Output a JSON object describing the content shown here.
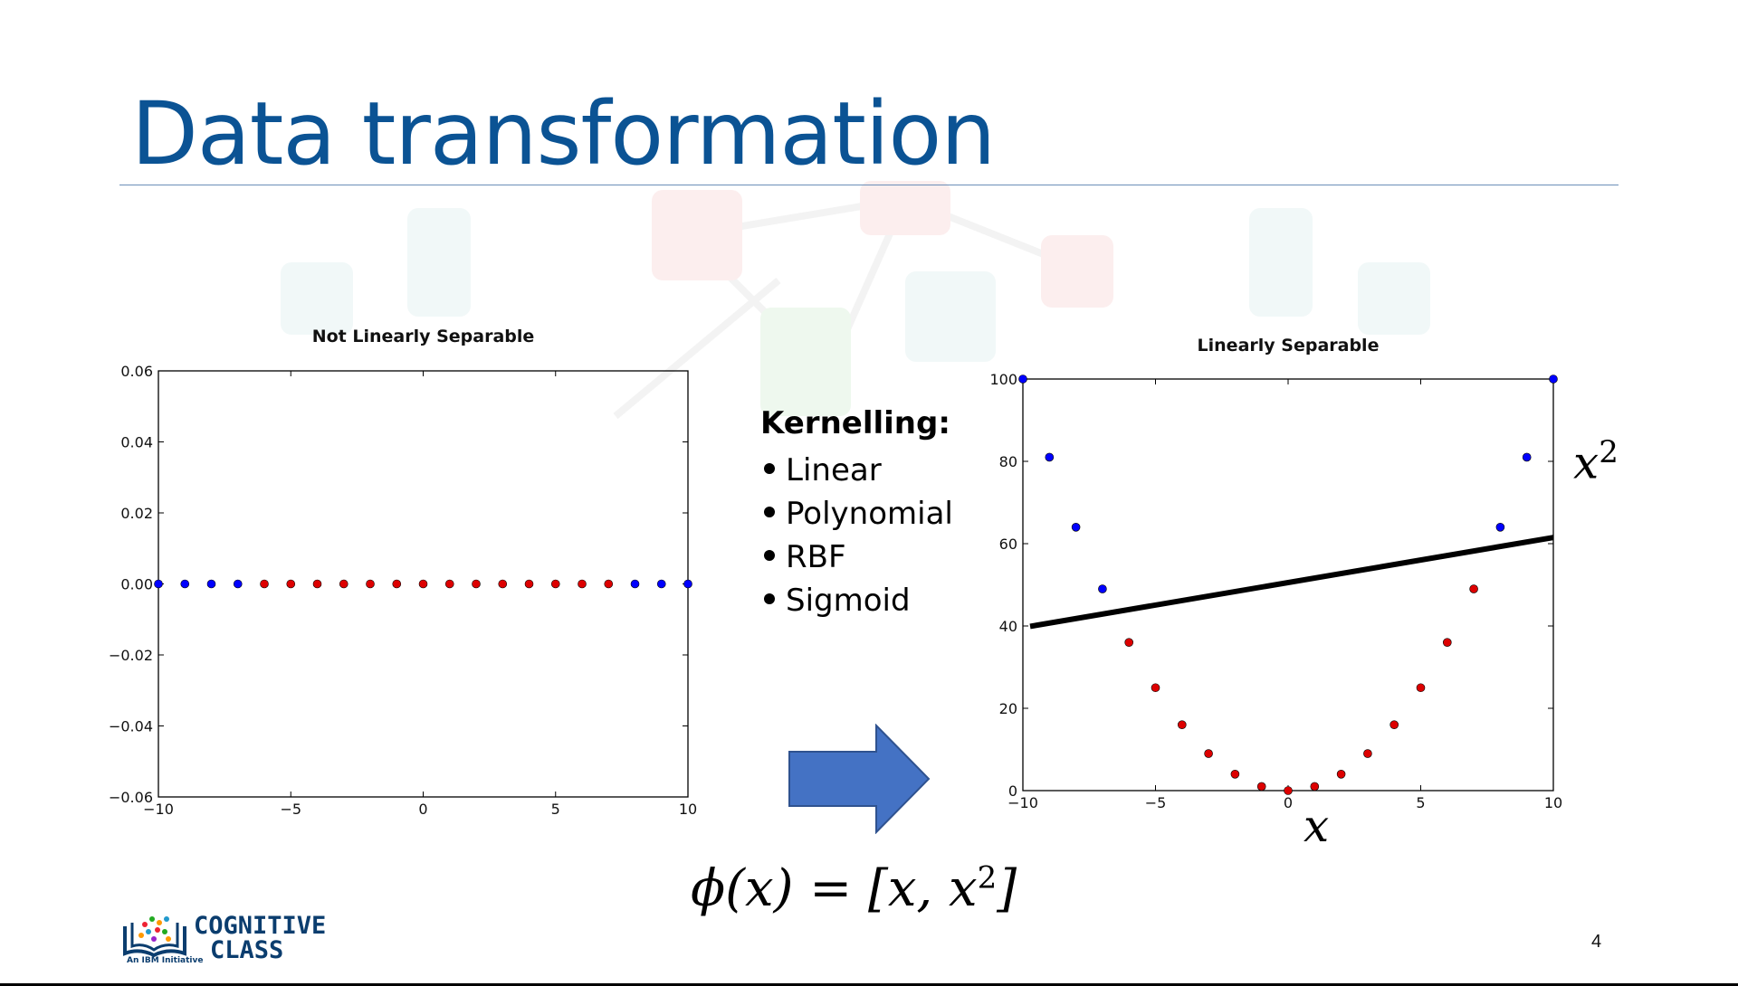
{
  "slide": {
    "title": "Data transformation",
    "number": "4",
    "kernel_heading": "Kernelling:",
    "kernels": [
      "Linear",
      "Polynomial",
      "RBF",
      "Sigmoid"
    ],
    "formula": {
      "lhs": "ϕ(x) = [x, x",
      "sup": "2",
      "rhs": "]"
    },
    "x_axis_math": "x",
    "y_axis_math": "x",
    "y_axis_sup": "2",
    "logo": {
      "line1": "COGNITIVE",
      "line2": "CLASS",
      "sub": "An IBM Initiative"
    },
    "colors": {
      "title": "#0b5394",
      "arrow": "#4472c4",
      "class_a": "#0000ff",
      "class_b": "#dd0000"
    }
  },
  "chart_data": [
    {
      "type": "scatter",
      "title": "Not Linearly Separable",
      "xlabel": "",
      "ylabel": "",
      "xlim": [
        -10,
        10
      ],
      "ylim": [
        -0.06,
        0.06
      ],
      "xticks": [
        "−10",
        "−5",
        "0",
        "5",
        "10"
      ],
      "yticks": [
        "−0.06",
        "−0.04",
        "−0.02",
        "0.00",
        "0.02",
        "0.04",
        "0.06"
      ],
      "series": [
        {
          "color": "#0000ff",
          "x": [
            -10,
            -9,
            -8,
            -7,
            8,
            9,
            10
          ],
          "y": [
            0,
            0,
            0,
            0,
            0,
            0,
            0
          ]
        },
        {
          "color": "#dd0000",
          "x": [
            -6,
            -5,
            -4,
            -3,
            -2,
            -1,
            0,
            1,
            2,
            3,
            4,
            5,
            6,
            7
          ],
          "y": [
            0,
            0,
            0,
            0,
            0,
            0,
            0,
            0,
            0,
            0,
            0,
            0,
            0,
            0
          ]
        }
      ]
    },
    {
      "type": "scatter",
      "title": "Linearly Separable",
      "xlabel": "",
      "ylabel": "",
      "xlim": [
        -10,
        10
      ],
      "ylim": [
        0,
        100
      ],
      "xticks": [
        "−10",
        "−5",
        "0",
        "5",
        "10"
      ],
      "yticks": [
        "0",
        "20",
        "40",
        "60",
        "80",
        "100"
      ],
      "series": [
        {
          "color": "#0000ff",
          "x": [
            -10,
            -9,
            -8,
            -7,
            8,
            9,
            10
          ],
          "y": [
            100,
            81,
            64,
            49,
            64,
            81,
            100
          ]
        },
        {
          "color": "#dd0000",
          "x": [
            -6,
            -5,
            -4,
            -3,
            -2,
            -1,
            0,
            1,
            2,
            3,
            4,
            5,
            6,
            7
          ],
          "y": [
            36,
            25,
            16,
            9,
            4,
            1,
            0,
            1,
            4,
            9,
            16,
            25,
            36,
            49
          ]
        }
      ],
      "separator_line": {
        "x": [
          -10,
          10
        ],
        "y": [
          39.5,
          61.5
        ]
      }
    }
  ]
}
